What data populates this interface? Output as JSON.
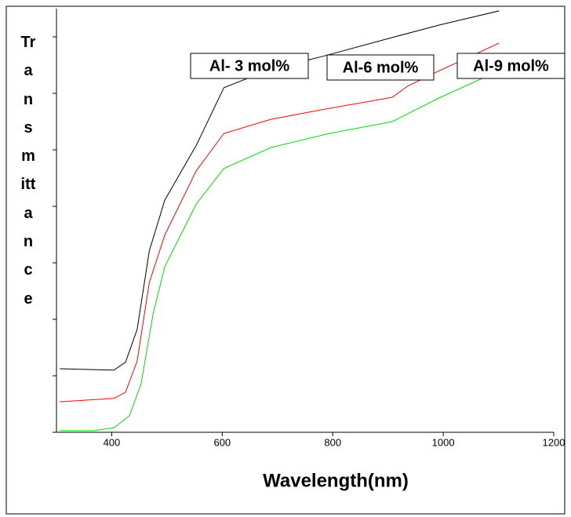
{
  "chart_data": {
    "type": "line",
    "xlabel": "Wavelength(nm)",
    "ylabel": "Transmittance",
    "xlim": [
      300,
      1200
    ],
    "xticks": [
      400,
      600,
      800,
      1000,
      1200
    ],
    "ylim": [
      0,
      75
    ],
    "yticks": [
      0,
      10,
      20,
      30,
      40,
      50,
      60,
      70
    ],
    "series": [
      {
        "name": "Al- 3 mol%",
        "color": "#000000",
        "x": [
          306,
          404,
          425,
          446,
          468,
          496,
          553,
          603,
          688,
          780,
          908,
          993,
          1101
        ],
        "values": [
          11.25,
          11.0,
          12.4,
          18.2,
          32.1,
          41.1,
          50.8,
          61.0,
          64.3,
          66.5,
          69.9,
          72.1,
          74.6
        ]
      },
      {
        "name": "Al-6 mol%",
        "color": "#ff0000",
        "x": [
          306,
          404,
          425,
          446,
          468,
          496,
          553,
          603,
          688,
          780,
          908,
          936,
          993,
          1101
        ],
        "values": [
          5.4,
          6.0,
          7.1,
          12.6,
          26.5,
          34.9,
          46.3,
          52.9,
          55.4,
          57.1,
          59.3,
          61.3,
          64.0,
          68.9
        ]
      },
      {
        "name": "Al-9 mol%",
        "color": "#00dd00",
        "x": [
          306,
          368,
          404,
          432,
          453,
          475,
          496,
          553,
          603,
          688,
          794,
          908,
          936,
          993,
          1101
        ],
        "values": [
          0.3,
          0.3,
          0.8,
          2.9,
          8.5,
          21.0,
          29.3,
          40.4,
          46.7,
          50.4,
          52.9,
          55.0,
          56.4,
          59.2,
          64.0
        ]
      }
    ]
  }
}
